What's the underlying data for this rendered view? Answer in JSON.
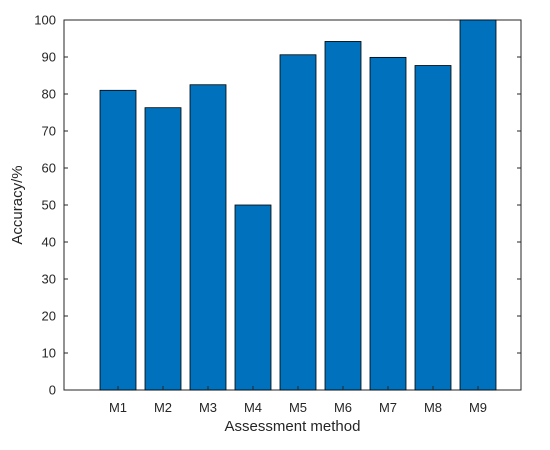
{
  "chart_data": {
    "type": "bar",
    "title": "",
    "xlabel": "Assessment method",
    "ylabel": "Accuracy/%",
    "categories": [
      "M1",
      "M2",
      "M3",
      "M4",
      "M5",
      "M6",
      "M7",
      "M8",
      "M9"
    ],
    "values": [
      81,
      76.3,
      82.5,
      50,
      90.6,
      94.2,
      89.9,
      87.7,
      100
    ],
    "ylim": [
      0,
      100
    ],
    "yticks": [
      "0",
      "10",
      "20",
      "30",
      "40",
      "50",
      "60",
      "70",
      "80",
      "90",
      "100"
    ],
    "bar_color": "#0072BD",
    "bar_edge_color": "#000000",
    "grid": false,
    "legend": "none"
  }
}
